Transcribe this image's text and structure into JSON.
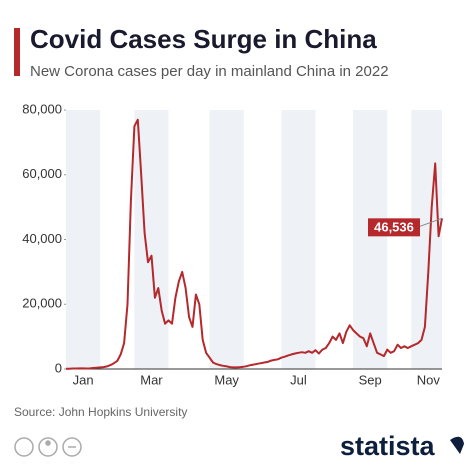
{
  "chart_data": {
    "type": "line",
    "title": "Covid Cases Surge in China",
    "subtitle": "New Corona cases per day in mainland China in 2022",
    "source": "Source: John Hopkins University",
    "brand": "statista",
    "color": "#b5282b",
    "categories": [
      null,
      null,
      null,
      null,
      null,
      "Jan",
      null,
      null,
      null,
      null,
      null,
      null,
      null,
      null,
      null,
      null,
      null,
      null,
      null,
      null,
      null,
      null,
      null,
      null,
      null,
      "Mar",
      null,
      null,
      null,
      null,
      null,
      null,
      null,
      null,
      null,
      null,
      null,
      null,
      null,
      null,
      null,
      null,
      null,
      null,
      null,
      null,
      null,
      "May",
      null,
      null,
      null,
      null,
      null,
      null,
      null,
      null,
      null,
      null,
      null,
      null,
      null,
      null,
      null,
      null,
      null,
      null,
      null,
      null,
      "Jul",
      null,
      null,
      null,
      null,
      null,
      null,
      null,
      null,
      null,
      null,
      null,
      null,
      null,
      null,
      null,
      null,
      null,
      null,
      null,
      null,
      "Sep",
      null,
      null,
      null,
      null,
      null,
      null,
      null,
      null,
      null,
      null,
      null,
      null,
      null,
      null,
      null,
      null,
      "Nov",
      null,
      null,
      null,
      null
    ],
    "values": [
      100,
      100,
      150,
      150,
      200,
      200,
      150,
      200,
      300,
      400,
      500,
      600,
      800,
      1200,
      1800,
      2500,
      4500,
      8000,
      20000,
      52000,
      75000,
      77000,
      60000,
      42000,
      33000,
      35000,
      22000,
      25000,
      18000,
      14000,
      15000,
      14000,
      22000,
      27000,
      30000,
      25000,
      16000,
      13000,
      23000,
      20000,
      9000,
      5000,
      3500,
      2000,
      1500,
      1200,
      1000,
      800,
      600,
      500,
      500,
      600,
      700,
      900,
      1200,
      1400,
      1600,
      1800,
      2000,
      2200,
      2600,
      2800,
      3000,
      3500,
      3800,
      4200,
      4500,
      4800,
      5000,
      5200,
      5000,
      5500,
      5000,
      5800,
      4800,
      6000,
      6500,
      8000,
      10000,
      9000,
      11000,
      8000,
      11500,
      13500,
      12000,
      11000,
      10000,
      9500,
      7000,
      11000,
      8000,
      5000,
      4500,
      4000,
      6000,
      5000,
      5500,
      7500,
      6500,
      7000,
      6500,
      7000,
      7500,
      8000,
      9000,
      13000,
      30000,
      50000,
      63500,
      41000,
      46536
    ],
    "annotation": {
      "value": 46536,
      "label": "46,536"
    },
    "ylim": [
      0,
      80000
    ],
    "yticks": [
      0,
      {
        "value": 20000,
        "label": "20,000"
      },
      {
        "value": 40000,
        "label": "40,000"
      },
      {
        "value": 60000,
        "label": "60,000"
      },
      {
        "value": 80000,
        "label": "80,000"
      }
    ]
  }
}
